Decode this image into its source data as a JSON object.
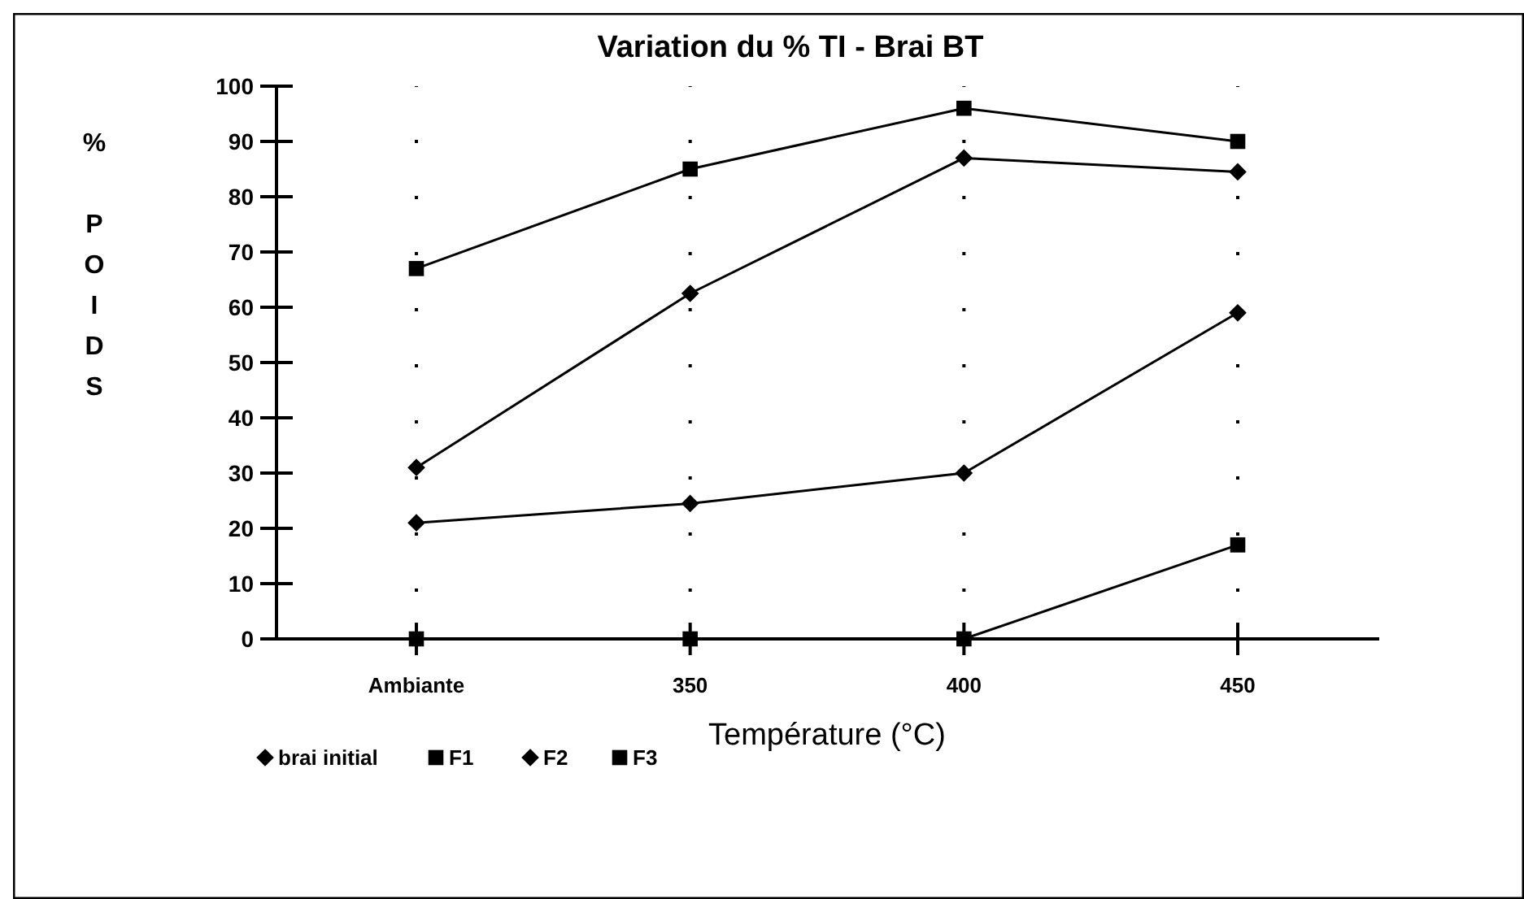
{
  "chart_data": {
    "type": "line",
    "title": "Variation du % TI  - Brai BT",
    "xlabel": "Température (°C)",
    "ylabel": "% POIDS",
    "categories": [
      "Ambiante",
      "350",
      "400",
      "450"
    ],
    "series": [
      {
        "name": "brai initial",
        "color": "#000000",
        "marker": "diamond",
        "values": [
          21,
          24.5,
          30,
          59
        ]
      },
      {
        "name": "F1",
        "color": "#000000",
        "marker": "square",
        "values": [
          0,
          0,
          0,
          17
        ]
      },
      {
        "name": "F2",
        "color": "#000000",
        "marker": "diamond",
        "values": [
          31,
          62.5,
          87,
          84.5
        ]
      },
      {
        "name": "F3",
        "color": "#000000",
        "marker": "square",
        "values": [
          67,
          85,
          96,
          90
        ]
      }
    ],
    "ylim": [
      0,
      100
    ],
    "yticks": [
      0,
      10,
      20,
      30,
      40,
      50,
      60,
      70,
      80,
      90,
      100
    ],
    "grid": "x",
    "legend": "bottom left",
    "line_style": "solid"
  }
}
